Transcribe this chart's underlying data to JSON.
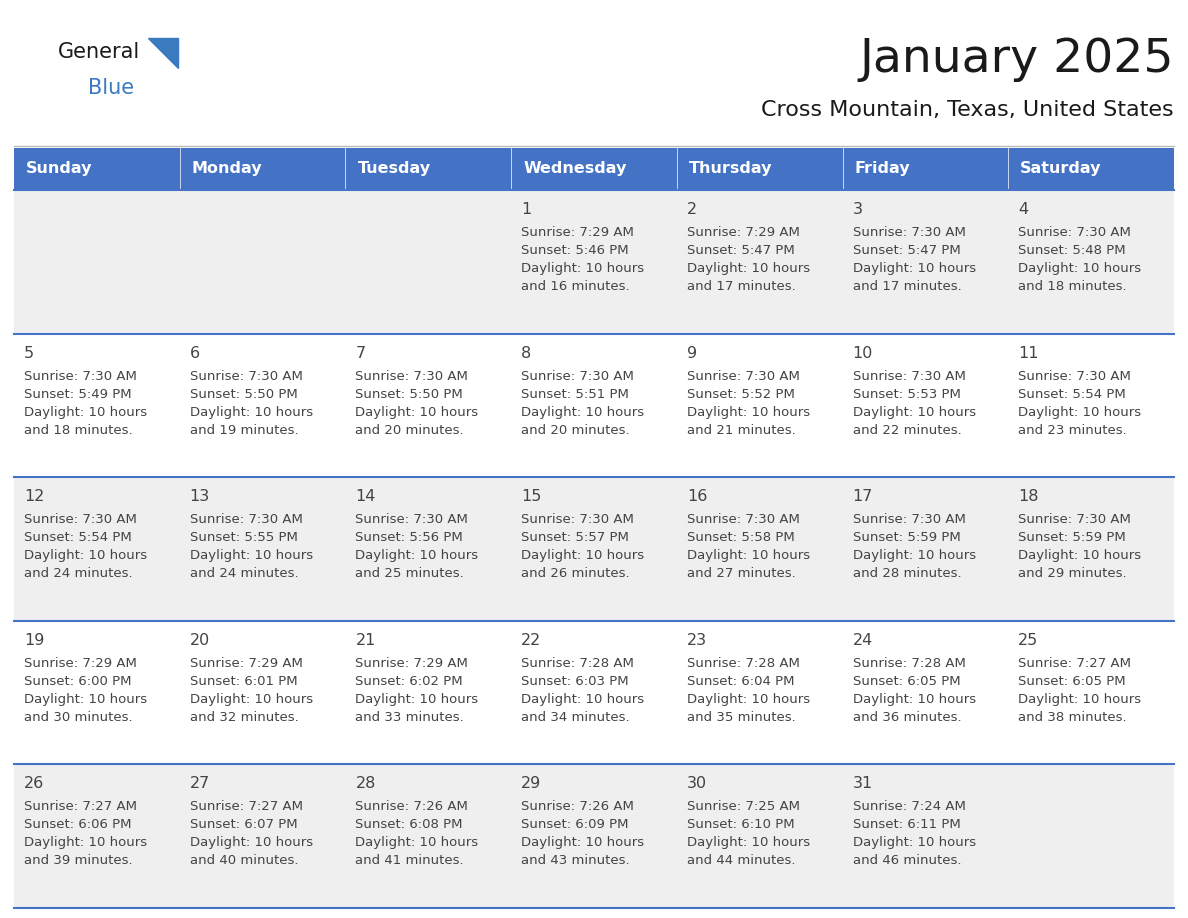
{
  "title": "January 2025",
  "subtitle": "Cross Mountain, Texas, United States",
  "days_of_week": [
    "Sunday",
    "Monday",
    "Tuesday",
    "Wednesday",
    "Thursday",
    "Friday",
    "Saturday"
  ],
  "header_bg": "#4472C4",
  "header_text_color": "#FFFFFF",
  "cell_bg_odd": "#EFEFEF",
  "cell_bg_even": "#FFFFFF",
  "cell_border_color": "#4472C4",
  "text_color": "#444444",
  "title_color": "#1a1a1a",
  "calendar_data": [
    [
      null,
      null,
      null,
      {
        "day": 1,
        "sunrise": "7:29 AM",
        "sunset": "5:46 PM",
        "daylight": "10 hours and 16 minutes."
      },
      {
        "day": 2,
        "sunrise": "7:29 AM",
        "sunset": "5:47 PM",
        "daylight": "10 hours and 17 minutes."
      },
      {
        "day": 3,
        "sunrise": "7:30 AM",
        "sunset": "5:47 PM",
        "daylight": "10 hours and 17 minutes."
      },
      {
        "day": 4,
        "sunrise": "7:30 AM",
        "sunset": "5:48 PM",
        "daylight": "10 hours and 18 minutes."
      }
    ],
    [
      {
        "day": 5,
        "sunrise": "7:30 AM",
        "sunset": "5:49 PM",
        "daylight": "10 hours and 18 minutes."
      },
      {
        "day": 6,
        "sunrise": "7:30 AM",
        "sunset": "5:50 PM",
        "daylight": "10 hours and 19 minutes."
      },
      {
        "day": 7,
        "sunrise": "7:30 AM",
        "sunset": "5:50 PM",
        "daylight": "10 hours and 20 minutes."
      },
      {
        "day": 8,
        "sunrise": "7:30 AM",
        "sunset": "5:51 PM",
        "daylight": "10 hours and 20 minutes."
      },
      {
        "day": 9,
        "sunrise": "7:30 AM",
        "sunset": "5:52 PM",
        "daylight": "10 hours and 21 minutes."
      },
      {
        "day": 10,
        "sunrise": "7:30 AM",
        "sunset": "5:53 PM",
        "daylight": "10 hours and 22 minutes."
      },
      {
        "day": 11,
        "sunrise": "7:30 AM",
        "sunset": "5:54 PM",
        "daylight": "10 hours and 23 minutes."
      }
    ],
    [
      {
        "day": 12,
        "sunrise": "7:30 AM",
        "sunset": "5:54 PM",
        "daylight": "10 hours and 24 minutes."
      },
      {
        "day": 13,
        "sunrise": "7:30 AM",
        "sunset": "5:55 PM",
        "daylight": "10 hours and 24 minutes."
      },
      {
        "day": 14,
        "sunrise": "7:30 AM",
        "sunset": "5:56 PM",
        "daylight": "10 hours and 25 minutes."
      },
      {
        "day": 15,
        "sunrise": "7:30 AM",
        "sunset": "5:57 PM",
        "daylight": "10 hours and 26 minutes."
      },
      {
        "day": 16,
        "sunrise": "7:30 AM",
        "sunset": "5:58 PM",
        "daylight": "10 hours and 27 minutes."
      },
      {
        "day": 17,
        "sunrise": "7:30 AM",
        "sunset": "5:59 PM",
        "daylight": "10 hours and 28 minutes."
      },
      {
        "day": 18,
        "sunrise": "7:30 AM",
        "sunset": "5:59 PM",
        "daylight": "10 hours and 29 minutes."
      }
    ],
    [
      {
        "day": 19,
        "sunrise": "7:29 AM",
        "sunset": "6:00 PM",
        "daylight": "10 hours and 30 minutes."
      },
      {
        "day": 20,
        "sunrise": "7:29 AM",
        "sunset": "6:01 PM",
        "daylight": "10 hours and 32 minutes."
      },
      {
        "day": 21,
        "sunrise": "7:29 AM",
        "sunset": "6:02 PM",
        "daylight": "10 hours and 33 minutes."
      },
      {
        "day": 22,
        "sunrise": "7:28 AM",
        "sunset": "6:03 PM",
        "daylight": "10 hours and 34 minutes."
      },
      {
        "day": 23,
        "sunrise": "7:28 AM",
        "sunset": "6:04 PM",
        "daylight": "10 hours and 35 minutes."
      },
      {
        "day": 24,
        "sunrise": "7:28 AM",
        "sunset": "6:05 PM",
        "daylight": "10 hours and 36 minutes."
      },
      {
        "day": 25,
        "sunrise": "7:27 AM",
        "sunset": "6:05 PM",
        "daylight": "10 hours and 38 minutes."
      }
    ],
    [
      {
        "day": 26,
        "sunrise": "7:27 AM",
        "sunset": "6:06 PM",
        "daylight": "10 hours and 39 minutes."
      },
      {
        "day": 27,
        "sunrise": "7:27 AM",
        "sunset": "6:07 PM",
        "daylight": "10 hours and 40 minutes."
      },
      {
        "day": 28,
        "sunrise": "7:26 AM",
        "sunset": "6:08 PM",
        "daylight": "10 hours and 41 minutes."
      },
      {
        "day": 29,
        "sunrise": "7:26 AM",
        "sunset": "6:09 PM",
        "daylight": "10 hours and 43 minutes."
      },
      {
        "day": 30,
        "sunrise": "7:25 AM",
        "sunset": "6:10 PM",
        "daylight": "10 hours and 44 minutes."
      },
      {
        "day": 31,
        "sunrise": "7:24 AM",
        "sunset": "6:11 PM",
        "daylight": "10 hours and 46 minutes."
      },
      null
    ]
  ],
  "logo_text_general": "General",
  "logo_text_blue": "Blue",
  "logo_color_general": "#1a1a1a",
  "logo_color_blue": "#3a7abf",
  "logo_triangle_color": "#3a7abf"
}
